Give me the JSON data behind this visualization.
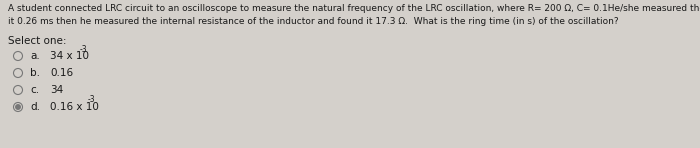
{
  "background_color": "#d4d0cb",
  "question_line1": "A student connected LRC circuit to an oscilloscope to measure the natural frequency of the LRC oscillation, where R= 200 Ω, C= 0.1He/she measured the period and found",
  "question_line2": "it 0.26 ms then he measured the internal resistance of the inductor and found it 17.3 Ω.  What is the ring time (in s) of the oscillation?",
  "select_one": "Select one:",
  "options": [
    {
      "letter": "a.",
      "text": "34 x 10",
      "superscript": "-3",
      "selected": false
    },
    {
      "letter": "b.",
      "text": "0.16",
      "superscript": "",
      "selected": false
    },
    {
      "letter": "c.",
      "text": "34",
      "superscript": "",
      "selected": false
    },
    {
      "letter": "d.",
      "text": "0.16 x 10",
      "superscript": "-3",
      "selected": true
    }
  ],
  "font_size_question": 6.5,
  "font_size_options": 7.5,
  "font_size_select": 7.5,
  "text_color": "#1a1a1a",
  "circle_color": "#777777",
  "circle_filled_color": "#777777"
}
